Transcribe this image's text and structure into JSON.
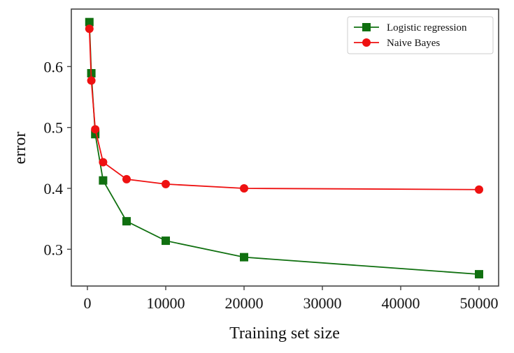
{
  "chart_data": {
    "type": "line",
    "title": "",
    "xlabel": "Training set size",
    "ylabel": "error",
    "xlim": [
      -2000,
      52500
    ],
    "ylim": [
      0.237,
      0.688
    ],
    "xticks": [
      0,
      10000,
      20000,
      30000,
      40000,
      50000
    ],
    "xtick_labels": [
      "0",
      "10000",
      "20000",
      "30000",
      "40000",
      "50000"
    ],
    "yticks": [
      0.3,
      0.4,
      0.5,
      0.6
    ],
    "ytick_labels": [
      "0.3",
      "0.4",
      "0.5",
      "0.6"
    ],
    "grid": false,
    "legend_position": "upper right",
    "x": [
      250,
      500,
      1000,
      2000,
      5000,
      10000,
      20000,
      50000
    ],
    "series": [
      {
        "name": "Logistic regression",
        "color": "#107010",
        "marker": "square",
        "values": [
          0.673,
          0.589,
          0.489,
          0.413,
          0.346,
          0.314,
          0.287,
          0.259
        ]
      },
      {
        "name": "Naive Bayes",
        "color": "#ee1111",
        "marker": "circle",
        "values": [
          0.662,
          0.577,
          0.497,
          0.443,
          0.415,
          0.407,
          0.4,
          0.398
        ]
      }
    ]
  }
}
